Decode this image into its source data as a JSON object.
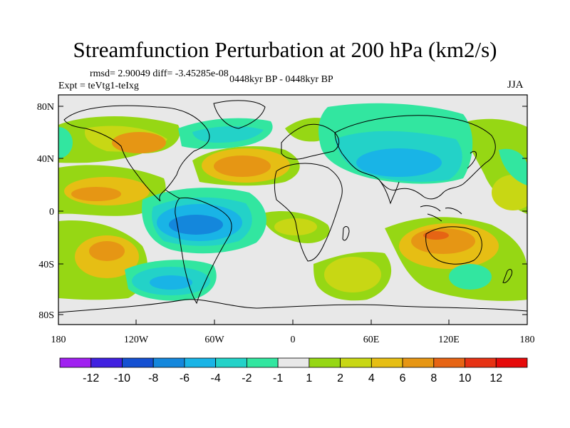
{
  "title": "Streamfunction Perturbation at 200 hPa (km2/s)",
  "stats": "rmsd= 2.90049 diff= -3.45285e-08",
  "experiment": "Expt = teVtg1-teIxg",
  "period": "0448kyr BP - 0448kyr BP",
  "season": "JJA",
  "map": {
    "projection": "cylindrical-equidistant",
    "lat_ticks": [
      "80N",
      "40N",
      "0",
      "40S",
      "80S"
    ],
    "lon_ticks": [
      "180",
      "120W",
      "60W",
      "0",
      "60E",
      "120E",
      "180"
    ],
    "background_color": "#e8e8e8",
    "coast_color": "#000000"
  },
  "colorbar": {
    "labels": [
      "-12",
      "-10",
      "-8",
      "-6",
      "-4",
      "-2",
      "-1",
      "1",
      "2",
      "4",
      "6",
      "8",
      "10",
      "12"
    ],
    "colors": [
      "#a020f0",
      "#4020e0",
      "#1450d2",
      "#1487dc",
      "#19b4e6",
      "#23d2c8",
      "#32e6a0",
      "#e8e8e8",
      "#96d714",
      "#c8d714",
      "#e6be14",
      "#e69614",
      "#e66414",
      "#e63214",
      "#e60a0a"
    ]
  }
}
